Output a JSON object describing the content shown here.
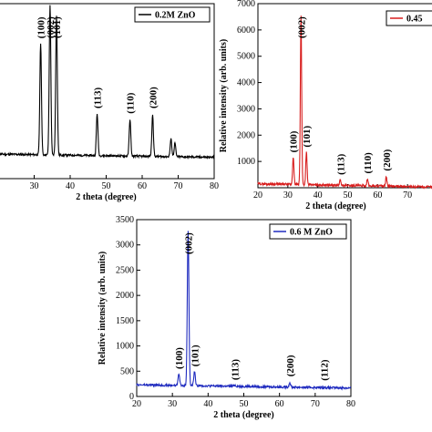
{
  "colors": {
    "panel_a": "#000000",
    "panel_b": "#d81e1e",
    "panel_c": "#1f2bbf",
    "frame": "#000000"
  },
  "chart_data": [
    {
      "type": "line",
      "panel": "a",
      "legend": "0.2M ZnO",
      "legend_placement": "top-right",
      "xlabel": "2 theta (degree)",
      "ylabel": "",
      "xlim": [
        20,
        80
      ],
      "ylim": [
        0,
        1
      ],
      "x_ticks": [
        30,
        40,
        50,
        60,
        70,
        80
      ],
      "x_tick_labels": [
        "30",
        "40",
        "50",
        "60",
        "70",
        "80"
      ],
      "y_ticks": [],
      "baseline": 0.14,
      "series": [
        {
          "name": "0.2M ZnO",
          "peaks": [
            {
              "x": 31.8,
              "y": 0.78,
              "label": "(100)"
            },
            {
              "x": 34.4,
              "y": 1.0,
              "label": "(002)"
            },
            {
              "x": 36.2,
              "y": 0.94,
              "label": "(101)"
            },
            {
              "x": 47.5,
              "y": 0.38,
              "label": "(113)"
            },
            {
              "x": 56.6,
              "y": 0.35,
              "label": "(110)"
            },
            {
              "x": 62.9,
              "y": 0.38,
              "label": "(200)"
            },
            {
              "x": 68.0,
              "y": 0.24,
              "label": ""
            },
            {
              "x": 69.1,
              "y": 0.22,
              "label": ""
            }
          ]
        }
      ]
    },
    {
      "type": "line",
      "panel": "b",
      "legend": "0.45",
      "legend_placement": "top-right",
      "xlabel": "2 theta (degree)",
      "ylabel": "Relative intensity (arb. units)",
      "xlim": [
        20,
        80
      ],
      "ylim": [
        0,
        7000
      ],
      "x_ticks": [
        20,
        30,
        40,
        50,
        60,
        70
      ],
      "x_tick_labels": [
        "20",
        "30",
        "40",
        "50",
        "60",
        "70"
      ],
      "y_ticks": [
        1000,
        2000,
        3000,
        4000,
        5000,
        6000,
        7000
      ],
      "y_tick_labels": [
        "1000",
        "2000",
        "3000",
        "4000",
        "5000",
        "6000",
        "7000"
      ],
      "baseline": 150,
      "series": [
        {
          "name": "0.45",
          "peaks": [
            {
              "x": 31.8,
              "y": 1200,
              "label": "(100)"
            },
            {
              "x": 34.4,
              "y": 6600,
              "label": "(002)"
            },
            {
              "x": 36.2,
              "y": 1400,
              "label": "(101)"
            },
            {
              "x": 47.5,
              "y": 350,
              "label": "(113)"
            },
            {
              "x": 56.6,
              "y": 400,
              "label": "(110)"
            },
            {
              "x": 62.9,
              "y": 500,
              "label": "(200)"
            }
          ]
        }
      ]
    },
    {
      "type": "line",
      "panel": "c",
      "legend": "0.6 M ZnO",
      "legend_placement": "top-right",
      "xlabel": "2 theta (degree)",
      "ylabel": "Relative intensity (arb. units)",
      "xlim": [
        20,
        80
      ],
      "ylim": [
        0,
        3500
      ],
      "x_ticks": [
        20,
        30,
        40,
        50,
        60,
        70,
        80
      ],
      "x_tick_labels": [
        "20",
        "30",
        "40",
        "50",
        "60",
        "70",
        "80"
      ],
      "y_ticks": [
        0,
        500,
        1000,
        1500,
        2000,
        2500,
        3000,
        3500
      ],
      "y_tick_labels": [
        "0",
        "500",
        "1000",
        "1500",
        "2000",
        "2500",
        "3000",
        "3500"
      ],
      "baseline": 230,
      "series": [
        {
          "name": "0.6 M ZnO",
          "peaks": [
            {
              "x": 31.8,
              "y": 470,
              "label": "(100)"
            },
            {
              "x": 34.4,
              "y": 3300,
              "label": "(002)"
            },
            {
              "x": 36.2,
              "y": 520,
              "label": "(101)"
            },
            {
              "x": 47.5,
              "y": 250,
              "label": "(113)"
            },
            {
              "x": 62.9,
              "y": 320,
              "label": "(200)"
            },
            {
              "x": 72.5,
              "y": 240,
              "label": "(112)"
            }
          ]
        }
      ]
    }
  ]
}
